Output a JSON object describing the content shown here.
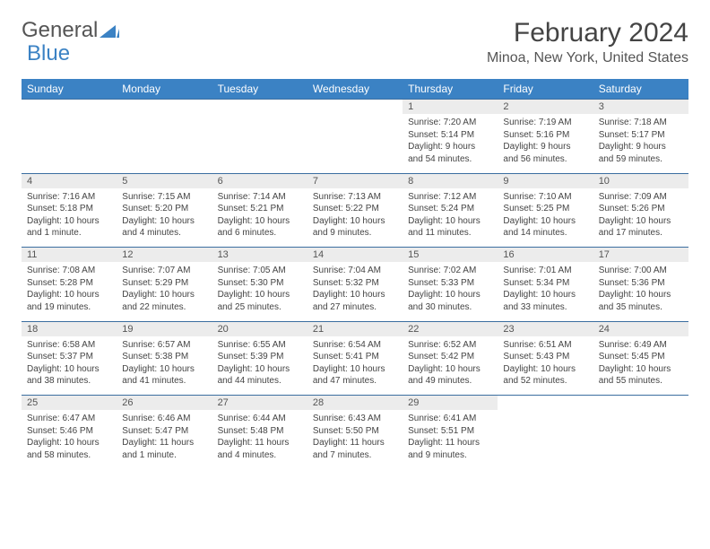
{
  "brand": {
    "part1": "General",
    "part2": "Blue"
  },
  "title": "February 2024",
  "location": "Minoa, New York, United States",
  "weekdays": [
    "Sunday",
    "Monday",
    "Tuesday",
    "Wednesday",
    "Thursday",
    "Friday",
    "Saturday"
  ],
  "colors": {
    "accent": "#3b82c4",
    "header_text": "#ffffff",
    "daynum_bg": "#ececec",
    "rule": "#3b6ea0",
    "text": "#444444"
  },
  "weeks": [
    [
      null,
      null,
      null,
      null,
      {
        "n": "1",
        "sr": "Sunrise: 7:20 AM",
        "ss": "Sunset: 5:14 PM",
        "dl": "Daylight: 9 hours and 54 minutes."
      },
      {
        "n": "2",
        "sr": "Sunrise: 7:19 AM",
        "ss": "Sunset: 5:16 PM",
        "dl": "Daylight: 9 hours and 56 minutes."
      },
      {
        "n": "3",
        "sr": "Sunrise: 7:18 AM",
        "ss": "Sunset: 5:17 PM",
        "dl": "Daylight: 9 hours and 59 minutes."
      }
    ],
    [
      {
        "n": "4",
        "sr": "Sunrise: 7:16 AM",
        "ss": "Sunset: 5:18 PM",
        "dl": "Daylight: 10 hours and 1 minute."
      },
      {
        "n": "5",
        "sr": "Sunrise: 7:15 AM",
        "ss": "Sunset: 5:20 PM",
        "dl": "Daylight: 10 hours and 4 minutes."
      },
      {
        "n": "6",
        "sr": "Sunrise: 7:14 AM",
        "ss": "Sunset: 5:21 PM",
        "dl": "Daylight: 10 hours and 6 minutes."
      },
      {
        "n": "7",
        "sr": "Sunrise: 7:13 AM",
        "ss": "Sunset: 5:22 PM",
        "dl": "Daylight: 10 hours and 9 minutes."
      },
      {
        "n": "8",
        "sr": "Sunrise: 7:12 AM",
        "ss": "Sunset: 5:24 PM",
        "dl": "Daylight: 10 hours and 11 minutes."
      },
      {
        "n": "9",
        "sr": "Sunrise: 7:10 AM",
        "ss": "Sunset: 5:25 PM",
        "dl": "Daylight: 10 hours and 14 minutes."
      },
      {
        "n": "10",
        "sr": "Sunrise: 7:09 AM",
        "ss": "Sunset: 5:26 PM",
        "dl": "Daylight: 10 hours and 17 minutes."
      }
    ],
    [
      {
        "n": "11",
        "sr": "Sunrise: 7:08 AM",
        "ss": "Sunset: 5:28 PM",
        "dl": "Daylight: 10 hours and 19 minutes."
      },
      {
        "n": "12",
        "sr": "Sunrise: 7:07 AM",
        "ss": "Sunset: 5:29 PM",
        "dl": "Daylight: 10 hours and 22 minutes."
      },
      {
        "n": "13",
        "sr": "Sunrise: 7:05 AM",
        "ss": "Sunset: 5:30 PM",
        "dl": "Daylight: 10 hours and 25 minutes."
      },
      {
        "n": "14",
        "sr": "Sunrise: 7:04 AM",
        "ss": "Sunset: 5:32 PM",
        "dl": "Daylight: 10 hours and 27 minutes."
      },
      {
        "n": "15",
        "sr": "Sunrise: 7:02 AM",
        "ss": "Sunset: 5:33 PM",
        "dl": "Daylight: 10 hours and 30 minutes."
      },
      {
        "n": "16",
        "sr": "Sunrise: 7:01 AM",
        "ss": "Sunset: 5:34 PM",
        "dl": "Daylight: 10 hours and 33 minutes."
      },
      {
        "n": "17",
        "sr": "Sunrise: 7:00 AM",
        "ss": "Sunset: 5:36 PM",
        "dl": "Daylight: 10 hours and 35 minutes."
      }
    ],
    [
      {
        "n": "18",
        "sr": "Sunrise: 6:58 AM",
        "ss": "Sunset: 5:37 PM",
        "dl": "Daylight: 10 hours and 38 minutes."
      },
      {
        "n": "19",
        "sr": "Sunrise: 6:57 AM",
        "ss": "Sunset: 5:38 PM",
        "dl": "Daylight: 10 hours and 41 minutes."
      },
      {
        "n": "20",
        "sr": "Sunrise: 6:55 AM",
        "ss": "Sunset: 5:39 PM",
        "dl": "Daylight: 10 hours and 44 minutes."
      },
      {
        "n": "21",
        "sr": "Sunrise: 6:54 AM",
        "ss": "Sunset: 5:41 PM",
        "dl": "Daylight: 10 hours and 47 minutes."
      },
      {
        "n": "22",
        "sr": "Sunrise: 6:52 AM",
        "ss": "Sunset: 5:42 PM",
        "dl": "Daylight: 10 hours and 49 minutes."
      },
      {
        "n": "23",
        "sr": "Sunrise: 6:51 AM",
        "ss": "Sunset: 5:43 PM",
        "dl": "Daylight: 10 hours and 52 minutes."
      },
      {
        "n": "24",
        "sr": "Sunrise: 6:49 AM",
        "ss": "Sunset: 5:45 PM",
        "dl": "Daylight: 10 hours and 55 minutes."
      }
    ],
    [
      {
        "n": "25",
        "sr": "Sunrise: 6:47 AM",
        "ss": "Sunset: 5:46 PM",
        "dl": "Daylight: 10 hours and 58 minutes."
      },
      {
        "n": "26",
        "sr": "Sunrise: 6:46 AM",
        "ss": "Sunset: 5:47 PM",
        "dl": "Daylight: 11 hours and 1 minute."
      },
      {
        "n": "27",
        "sr": "Sunrise: 6:44 AM",
        "ss": "Sunset: 5:48 PM",
        "dl": "Daylight: 11 hours and 4 minutes."
      },
      {
        "n": "28",
        "sr": "Sunrise: 6:43 AM",
        "ss": "Sunset: 5:50 PM",
        "dl": "Daylight: 11 hours and 7 minutes."
      },
      {
        "n": "29",
        "sr": "Sunrise: 6:41 AM",
        "ss": "Sunset: 5:51 PM",
        "dl": "Daylight: 11 hours and 9 minutes."
      },
      null,
      null
    ]
  ]
}
